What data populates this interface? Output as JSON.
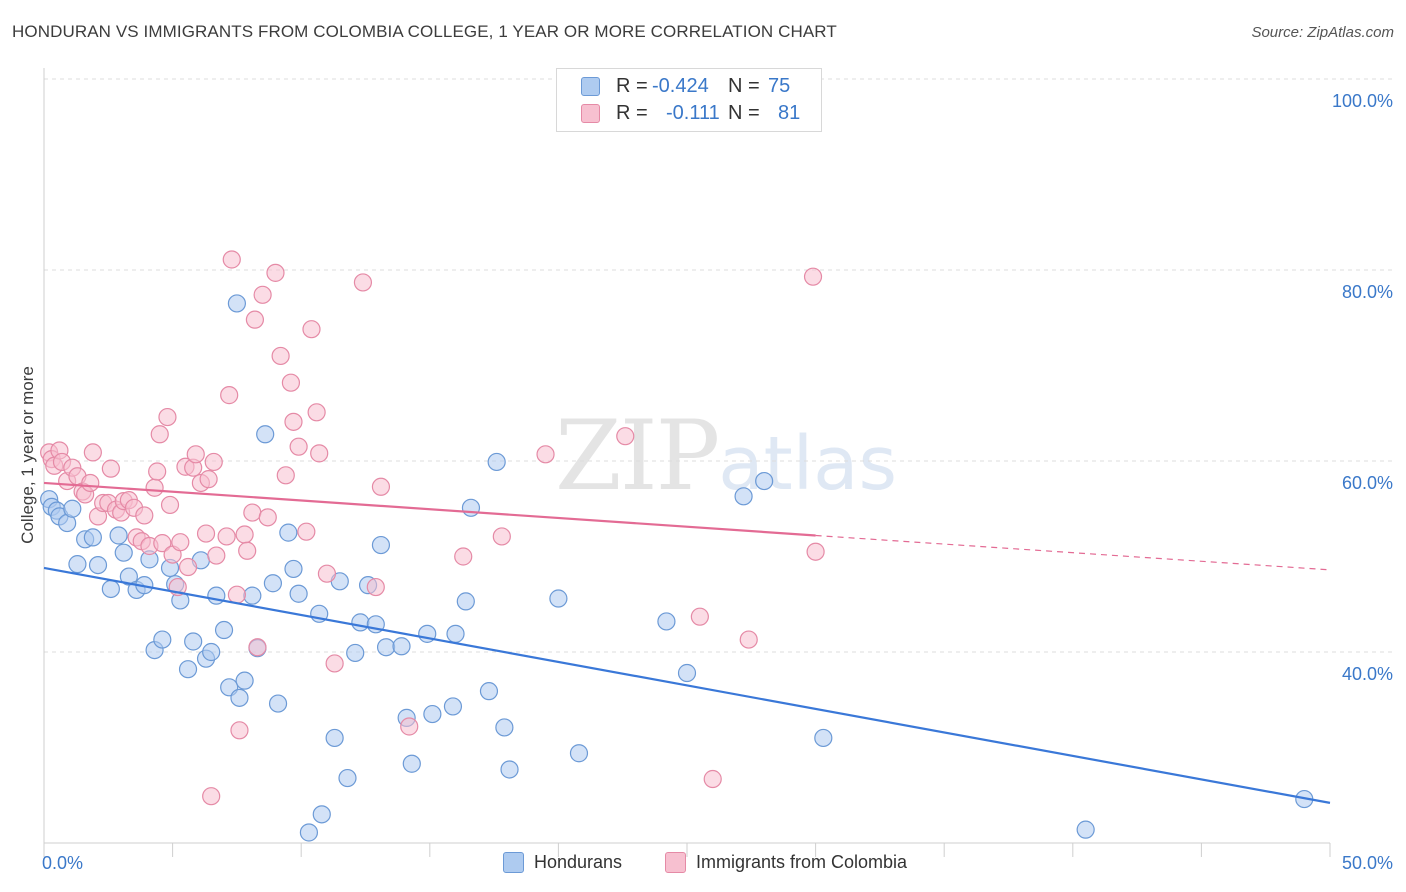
{
  "title": "HONDURAN VS IMMIGRANTS FROM COLOMBIA COLLEGE, 1 YEAR OR MORE CORRELATION CHART",
  "source": "Source: ZipAtlas.com",
  "watermark": {
    "zip": "ZIP",
    "atlas": "atlas"
  },
  "legend": {
    "r_label": "R =",
    "n_label": "N =",
    "rows": [
      {
        "r": "-0.424",
        "n": "75",
        "fill": "#aecbf0",
        "stroke": "#6c9ad6"
      },
      {
        "r": "-0.111",
        "n": "81",
        "fill": "#f7c0d0",
        "stroke": "#e58aa6"
      }
    ]
  },
  "bottom_legend": [
    "Hondurans",
    "Immigrants from Colombia"
  ],
  "chart_data": {
    "type": "scatter",
    "xlabel": "",
    "ylabel": "College, 1 year or more",
    "xlim": [
      0,
      50
    ],
    "ylim": [
      20,
      100
    ],
    "x_tick_labels": {
      "left": "0.0%",
      "right": "50.0%"
    },
    "y_ticks": [
      {
        "value": 100,
        "label": "100.0%"
      },
      {
        "value": 80,
        "label": "80.0%"
      },
      {
        "value": 60,
        "label": "60.0%"
      },
      {
        "value": 40,
        "label": "40.0%"
      }
    ],
    "series": [
      {
        "name": "Hondurans",
        "color": "#3a78d8",
        "fill": "#aecbf0",
        "stroke": "#6c9ad6",
        "trend": {
          "x0": 0,
          "y0": 48.8,
          "x1": 50,
          "y1": 24.2
        },
        "points": [
          [
            0.2,
            56.0
          ],
          [
            0.3,
            55.2
          ],
          [
            0.5,
            54.8
          ],
          [
            0.6,
            54.2
          ],
          [
            0.9,
            53.5
          ],
          [
            1.1,
            55.0
          ],
          [
            1.3,
            49.2
          ],
          [
            1.6,
            51.8
          ],
          [
            1.9,
            52.0
          ],
          [
            2.1,
            49.1
          ],
          [
            2.6,
            46.6
          ],
          [
            2.9,
            52.2
          ],
          [
            3.1,
            50.4
          ],
          [
            3.3,
            47.9
          ],
          [
            3.6,
            46.5
          ],
          [
            3.9,
            47.0
          ],
          [
            4.1,
            49.7
          ],
          [
            4.3,
            40.2
          ],
          [
            4.6,
            41.3
          ],
          [
            4.9,
            48.8
          ],
          [
            5.1,
            47.1
          ],
          [
            5.3,
            45.4
          ],
          [
            5.6,
            38.2
          ],
          [
            5.8,
            41.1
          ],
          [
            6.1,
            49.6
          ],
          [
            6.3,
            39.3
          ],
          [
            6.5,
            40.0
          ],
          [
            6.7,
            45.9
          ],
          [
            7.0,
            42.3
          ],
          [
            7.2,
            36.3
          ],
          [
            7.5,
            76.5
          ],
          [
            7.6,
            35.2
          ],
          [
            7.8,
            37.0
          ],
          [
            8.1,
            45.9
          ],
          [
            8.3,
            40.4
          ],
          [
            8.6,
            62.8
          ],
          [
            8.9,
            47.2
          ],
          [
            9.1,
            34.6
          ],
          [
            9.5,
            52.5
          ],
          [
            9.7,
            48.7
          ],
          [
            9.9,
            46.1
          ],
          [
            10.3,
            21.1
          ],
          [
            10.7,
            44.0
          ],
          [
            10.8,
            23.0
          ],
          [
            11.3,
            31.0
          ],
          [
            11.5,
            47.4
          ],
          [
            11.8,
            26.8
          ],
          [
            12.1,
            39.9
          ],
          [
            12.3,
            43.1
          ],
          [
            12.6,
            47.0
          ],
          [
            12.9,
            42.9
          ],
          [
            13.1,
            51.2
          ],
          [
            13.3,
            40.5
          ],
          [
            13.9,
            40.6
          ],
          [
            14.1,
            33.1
          ],
          [
            14.3,
            28.3
          ],
          [
            14.9,
            41.9
          ],
          [
            15.1,
            33.5
          ],
          [
            15.9,
            34.3
          ],
          [
            16.0,
            41.9
          ],
          [
            16.4,
            45.3
          ],
          [
            16.6,
            55.1
          ],
          [
            17.3,
            35.9
          ],
          [
            17.6,
            59.9
          ],
          [
            17.9,
            32.1
          ],
          [
            18.1,
            27.7
          ],
          [
            20.0,
            45.6
          ],
          [
            20.8,
            29.4
          ],
          [
            24.2,
            43.2
          ],
          [
            25.0,
            37.8
          ],
          [
            27.2,
            56.3
          ],
          [
            28.0,
            57.9
          ],
          [
            30.3,
            31.0
          ],
          [
            40.5,
            21.4
          ],
          [
            49.0,
            24.6
          ]
        ]
      },
      {
        "name": "Immigrants from Colombia",
        "color": "#e36b94",
        "fill": "#f7c0d0",
        "stroke": "#e58aa6",
        "trend": {
          "x0": 0,
          "y0": 57.7,
          "x1": 30.0,
          "y1": 52.2
        },
        "trend_dashed": {
          "x0": 30.0,
          "y0": 52.2,
          "x1": 50,
          "y1": 48.6
        },
        "points": [
          [
            0.2,
            60.9
          ],
          [
            0.3,
            60.2
          ],
          [
            0.4,
            59.5
          ],
          [
            0.6,
            61.1
          ],
          [
            0.7,
            59.9
          ],
          [
            0.9,
            57.9
          ],
          [
            1.1,
            59.3
          ],
          [
            1.3,
            58.4
          ],
          [
            1.5,
            56.8
          ],
          [
            1.6,
            56.5
          ],
          [
            1.8,
            57.7
          ],
          [
            1.9,
            60.9
          ],
          [
            2.1,
            54.2
          ],
          [
            2.3,
            55.6
          ],
          [
            2.5,
            55.6
          ],
          [
            2.6,
            59.2
          ],
          [
            2.8,
            54.9
          ],
          [
            3.0,
            54.6
          ],
          [
            3.1,
            55.8
          ],
          [
            3.3,
            55.9
          ],
          [
            3.5,
            55.1
          ],
          [
            3.6,
            52.0
          ],
          [
            3.8,
            51.6
          ],
          [
            3.9,
            54.3
          ],
          [
            4.1,
            51.1
          ],
          [
            4.3,
            57.2
          ],
          [
            4.4,
            58.9
          ],
          [
            4.5,
            62.8
          ],
          [
            4.6,
            51.4
          ],
          [
            4.8,
            64.6
          ],
          [
            4.9,
            55.4
          ],
          [
            5.0,
            50.2
          ],
          [
            5.2,
            46.8
          ],
          [
            5.3,
            51.5
          ],
          [
            5.5,
            59.4
          ],
          [
            5.6,
            48.9
          ],
          [
            5.8,
            59.3
          ],
          [
            5.9,
            60.7
          ],
          [
            6.1,
            57.7
          ],
          [
            6.3,
            52.4
          ],
          [
            6.4,
            58.1
          ],
          [
            6.5,
            24.9
          ],
          [
            6.6,
            59.9
          ],
          [
            6.7,
            50.1
          ],
          [
            7.1,
            52.1
          ],
          [
            7.2,
            66.9
          ],
          [
            7.3,
            81.1
          ],
          [
            7.5,
            46.0
          ],
          [
            7.6,
            31.8
          ],
          [
            7.8,
            52.3
          ],
          [
            7.9,
            50.6
          ],
          [
            8.1,
            54.6
          ],
          [
            8.2,
            74.8
          ],
          [
            8.3,
            40.5
          ],
          [
            8.5,
            77.4
          ],
          [
            8.7,
            54.1
          ],
          [
            9.0,
            79.7
          ],
          [
            9.2,
            71.0
          ],
          [
            9.4,
            58.5
          ],
          [
            9.6,
            68.2
          ],
          [
            9.7,
            64.1
          ],
          [
            9.9,
            61.5
          ],
          [
            10.2,
            52.6
          ],
          [
            10.4,
            73.8
          ],
          [
            10.6,
            65.1
          ],
          [
            10.7,
            60.8
          ],
          [
            11.0,
            48.2
          ],
          [
            11.3,
            38.8
          ],
          [
            12.4,
            78.7
          ],
          [
            12.9,
            46.8
          ],
          [
            13.1,
            57.3
          ],
          [
            14.2,
            32.2
          ],
          [
            16.3,
            50.0
          ],
          [
            17.8,
            52.1
          ],
          [
            19.5,
            60.7
          ],
          [
            22.6,
            62.6
          ],
          [
            25.5,
            43.7
          ],
          [
            26.0,
            26.7
          ],
          [
            27.4,
            41.3
          ],
          [
            29.9,
            79.3
          ],
          [
            30.0,
            50.5
          ]
        ]
      }
    ]
  }
}
